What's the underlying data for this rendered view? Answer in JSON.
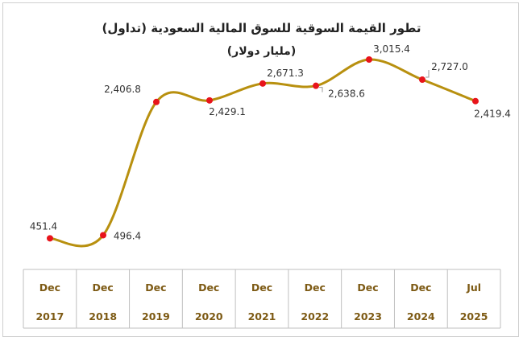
{
  "chart_data": {
    "type": "line",
    "title": "تطور القيمة السوقية للسوق المالية السعودية (تداول)",
    "subtitle": "(مليار دولار)",
    "categories": [
      {
        "month": "Dec",
        "year": "2017"
      },
      {
        "month": "Dec",
        "year": "2018"
      },
      {
        "month": "Dec",
        "year": "2019"
      },
      {
        "month": "Dec",
        "year": "2020"
      },
      {
        "month": "Dec",
        "year": "2021"
      },
      {
        "month": "Dec",
        "year": "2022"
      },
      {
        "month": "Dec",
        "year": "2023"
      },
      {
        "month": "Dec",
        "year": "2024"
      },
      {
        "month": "Jul",
        "year": "2025"
      }
    ],
    "values": [
      451.4,
      496.4,
      2406.8,
      2429.1,
      2671.3,
      2638.6,
      3015.4,
      2727.0,
      2419.4
    ],
    "value_labels": [
      "451.4",
      "496.4",
      "2,406.8",
      "2,429.1",
      "2,671.3",
      "2,638.6",
      "3,015.4",
      "2,727.0",
      "2,419.4"
    ],
    "ylim": [
      0,
      3200
    ],
    "line_color": "#b8900f",
    "marker_color": "#e8141b",
    "grid": false,
    "legend": "none"
  }
}
